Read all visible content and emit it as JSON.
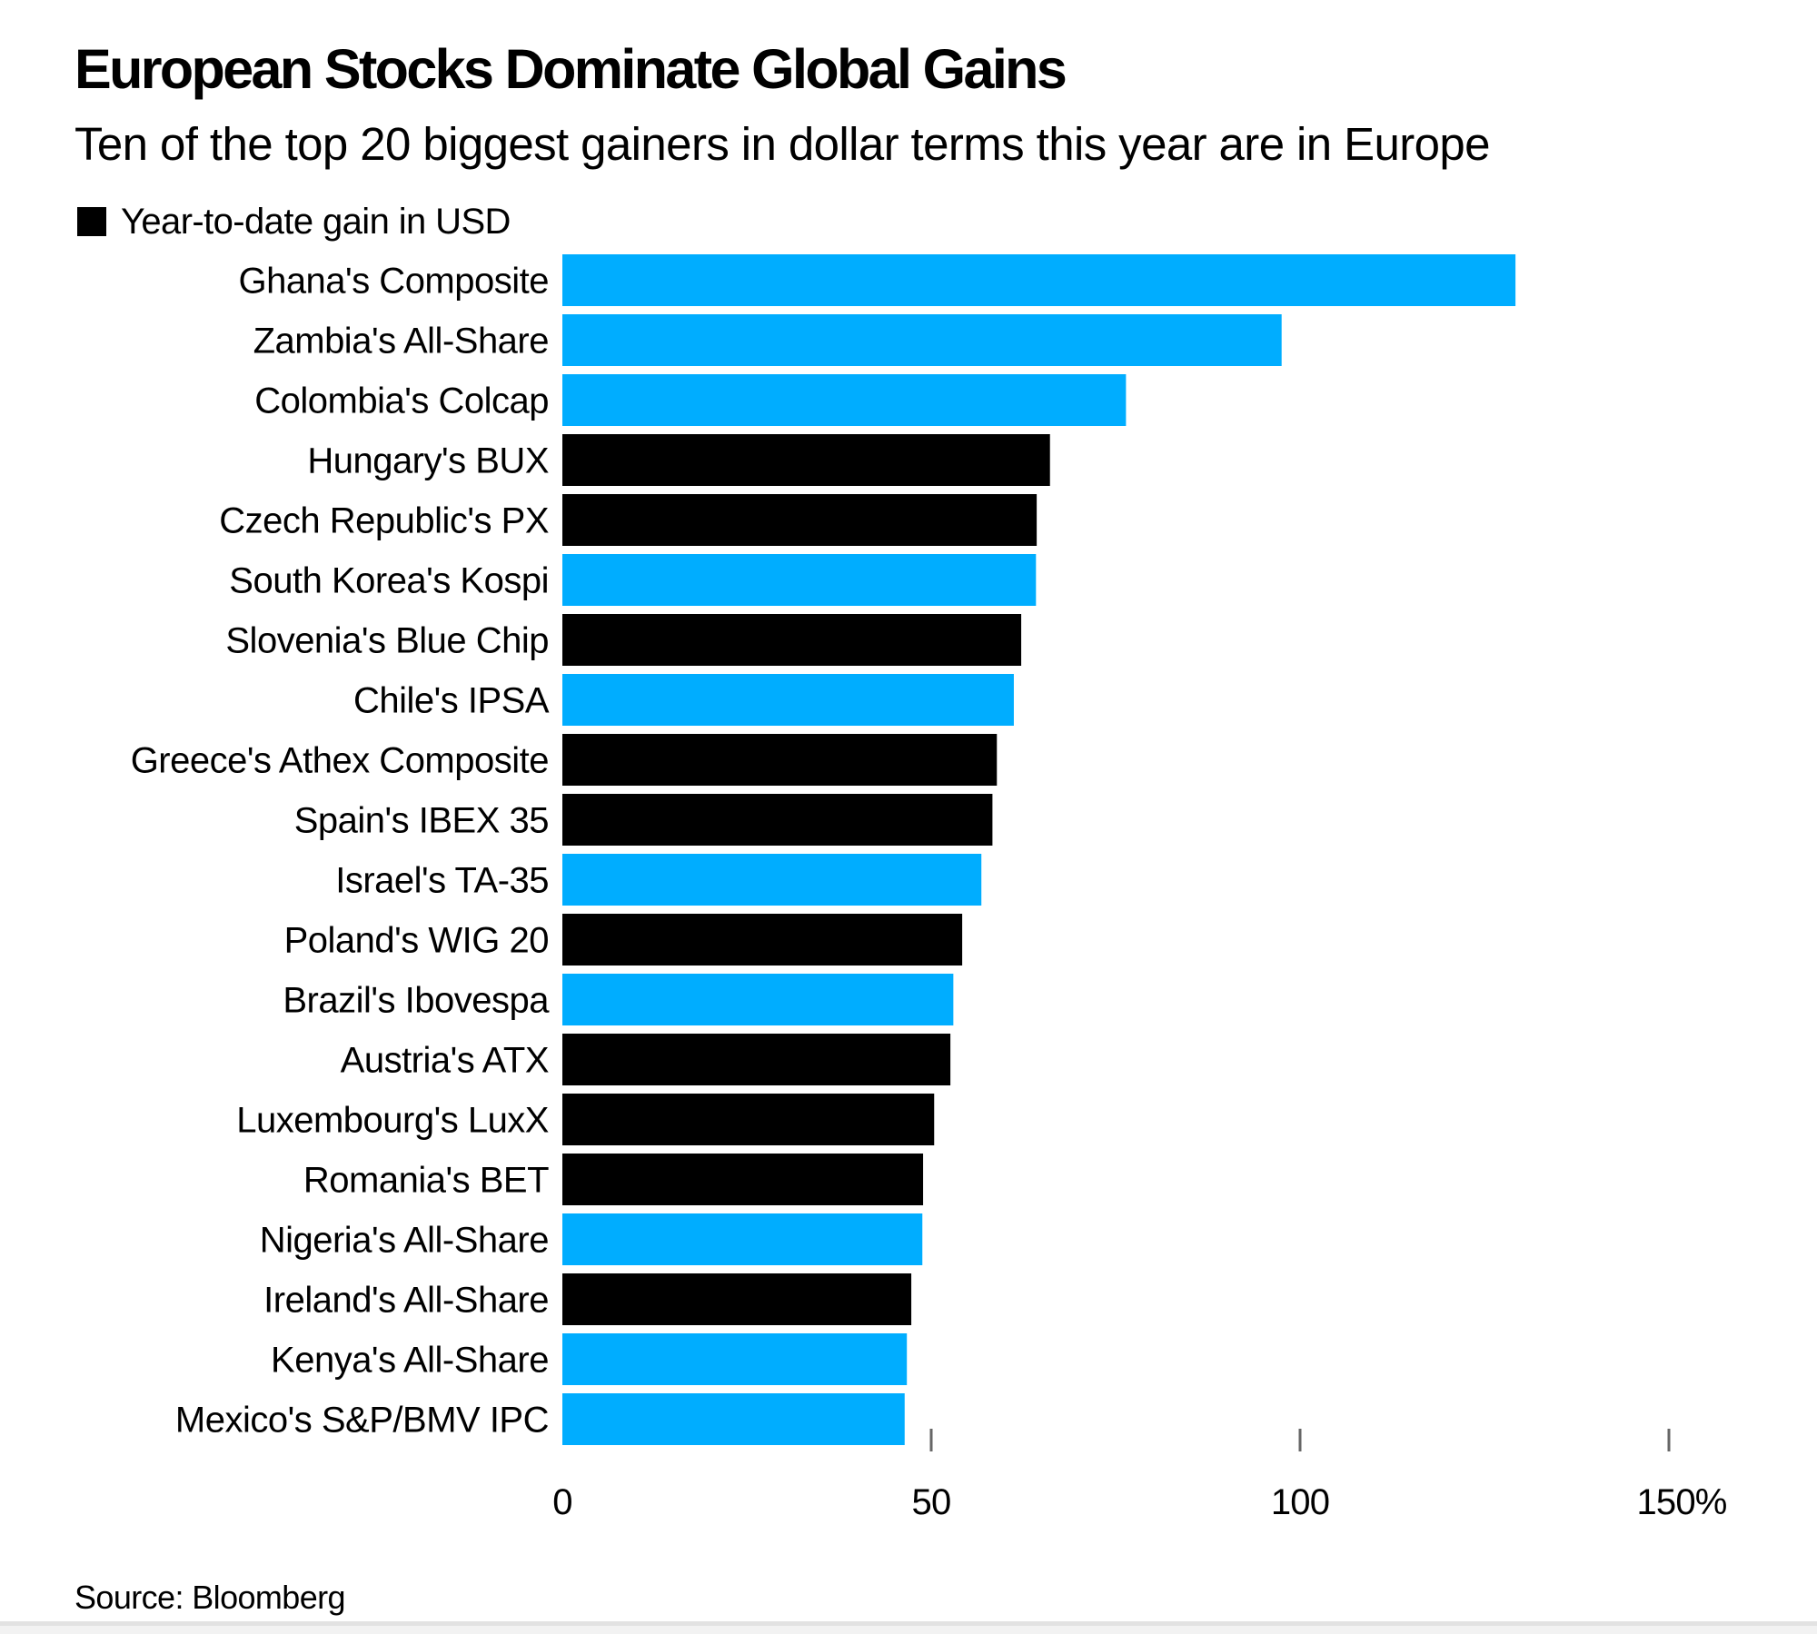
{
  "header": {
    "title": "European Stocks Dominate Global Gains",
    "subtitle": "Ten of the top 20 biggest gainers in dollar terms this year are in Europe"
  },
  "legend": {
    "label": "Year-to-date gain in USD",
    "swatch_color": "#000000"
  },
  "footer": {
    "source": "Source: Bloomberg"
  },
  "colors": {
    "europe": "#000000",
    "non_europe": "#00adff",
    "tick": "#666666"
  },
  "chart_data": {
    "type": "bar",
    "orientation": "horizontal",
    "title": "European Stocks Dominate Global Gains",
    "subtitle": "Ten of the top 20 biggest gainers in dollar terms this year are in Europe",
    "xlabel": "",
    "ylabel": "",
    "xlim": [
      0,
      150
    ],
    "x_ticks": [
      0,
      50,
      100,
      150
    ],
    "x_tick_labels": [
      "0",
      "50",
      "100",
      "150%"
    ],
    "grid": false,
    "legend": {
      "entries": [
        "Year-to-date gain in USD"
      ],
      "position": "top-left"
    },
    "series": [
      {
        "name": "Year-to-date gain in USD",
        "unit": "%"
      }
    ],
    "categories": [
      "Ghana's Composite",
      "Zambia's All-Share",
      "Colombia's Colcap",
      "Hungary's BUX",
      "Czech Republic's PX",
      "South Korea's Kospi",
      "Slovenia's Blue Chip",
      "Chile's IPSA",
      "Greece's Athex Composite",
      "Spain's IBEX 35",
      "Israel's TA-35",
      "Poland's WIG 20",
      "Brazil's Ibovespa",
      "Austria's ATX",
      "Luxembourg's LuxX",
      "Romania's BET",
      "Nigeria's All-Share",
      "Ireland's All-Share",
      "Kenya's All-Share",
      "Mexico's S&P/BMV IPC"
    ],
    "values": [
      129.2,
      97.5,
      76.4,
      66.1,
      64.3,
      64.2,
      62.2,
      61.2,
      58.9,
      58.3,
      56.8,
      54.2,
      53.0,
      52.6,
      50.4,
      48.9,
      48.8,
      47.3,
      46.7,
      46.4
    ],
    "is_europe": [
      false,
      false,
      false,
      true,
      true,
      false,
      true,
      false,
      true,
      true,
      false,
      true,
      false,
      true,
      true,
      true,
      false,
      true,
      false,
      false
    ],
    "source": "Source: Bloomberg"
  }
}
